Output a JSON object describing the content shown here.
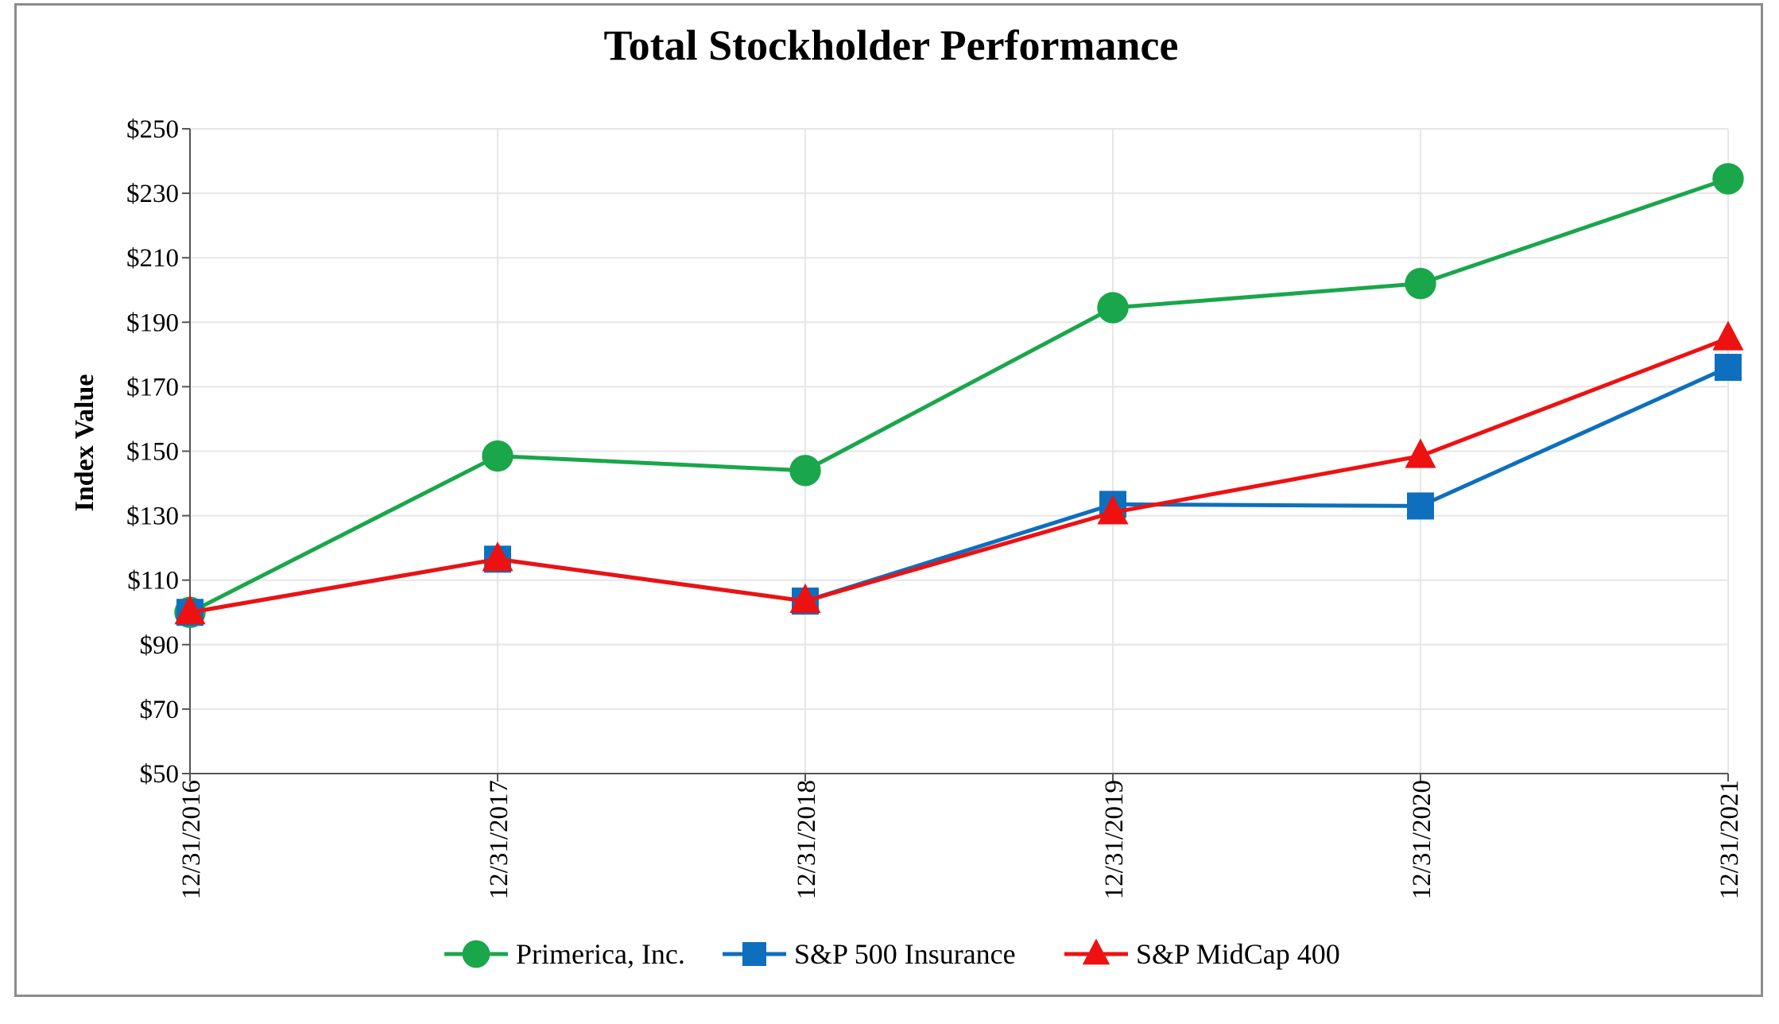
{
  "chart_data": {
    "type": "line",
    "title": "Total Stockholder Performance",
    "xlabel": "",
    "ylabel": "Index Value",
    "categories": [
      "12/31/2016",
      "12/31/2017",
      "12/31/2018",
      "12/31/2019",
      "12/31/2020",
      "12/31/2021"
    ],
    "ylim": [
      50,
      250
    ],
    "yticks": [
      50,
      70,
      90,
      110,
      130,
      150,
      170,
      190,
      210,
      230,
      250
    ],
    "ytick_labels": [
      "$50",
      "$70",
      "$90",
      "$110",
      "$130",
      "$150",
      "$170",
      "$190",
      "$210",
      "$230",
      "$250"
    ],
    "grid": true,
    "legend_position": "bottom",
    "series": [
      {
        "name": "Primerica, Inc.",
        "color": "#1aa64b",
        "marker": "circle",
        "values": [
          100,
          148.5,
          144,
          194.5,
          202,
          234.5
        ]
      },
      {
        "name": "S&P 500 Insurance",
        "color": "#0d6fbd",
        "marker": "square",
        "values": [
          100,
          116.5,
          103.5,
          133.5,
          133,
          176
        ]
      },
      {
        "name": "S&P MidCap 400",
        "color": "#ee1111",
        "marker": "triangle",
        "values": [
          100,
          116.5,
          103.5,
          131,
          148.5,
          185
        ]
      }
    ]
  }
}
